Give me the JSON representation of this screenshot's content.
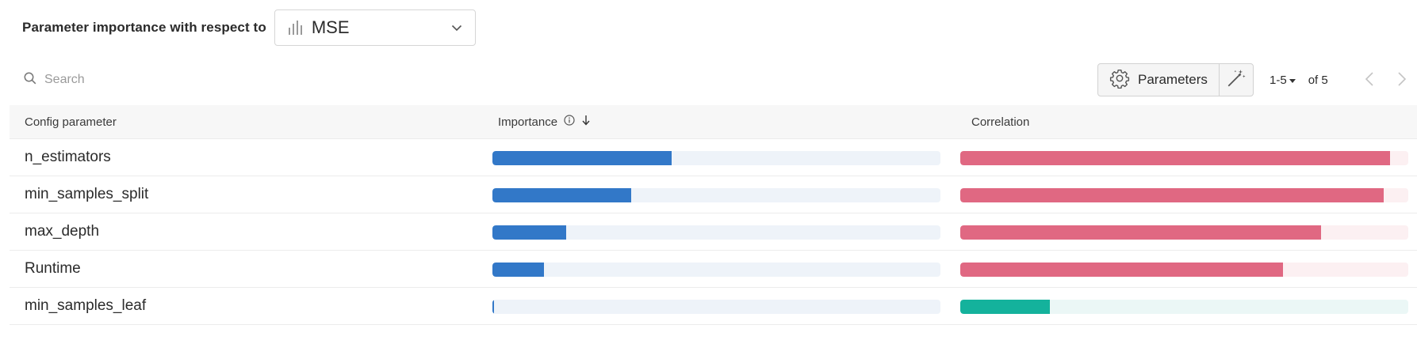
{
  "header": {
    "label": "Parameter importance with respect to",
    "metric": "MSE",
    "metric_icon": "bar-chart-icon"
  },
  "toolbar": {
    "search_placeholder": "Search",
    "parameters_label": "Parameters",
    "page_range": "1-5",
    "page_total": "of 5"
  },
  "table": {
    "columns": {
      "param": "Config parameter",
      "importance": "Importance",
      "correlation": "Correlation"
    },
    "rows": [
      {
        "name": "n_estimators",
        "importance": 0.4,
        "correlation": 0.96,
        "correlation_sign": "positive"
      },
      {
        "name": "min_samples_split",
        "importance": 0.31,
        "correlation": 0.945,
        "correlation_sign": "positive"
      },
      {
        "name": "max_depth",
        "importance": 0.165,
        "correlation": 0.805,
        "correlation_sign": "positive"
      },
      {
        "name": "Runtime",
        "importance": 0.115,
        "correlation": 0.72,
        "correlation_sign": "positive"
      },
      {
        "name": "min_samples_leaf",
        "importance": 0.004,
        "correlation": 0.2,
        "correlation_sign": "negative"
      }
    ]
  },
  "colors": {
    "importance": "#3278c8",
    "importance_track": "#eef3f9",
    "positive": "#e06882",
    "positive_track": "#fcf0f2",
    "negative": "#14b29c",
    "negative_track": "#ebf7f6"
  }
}
